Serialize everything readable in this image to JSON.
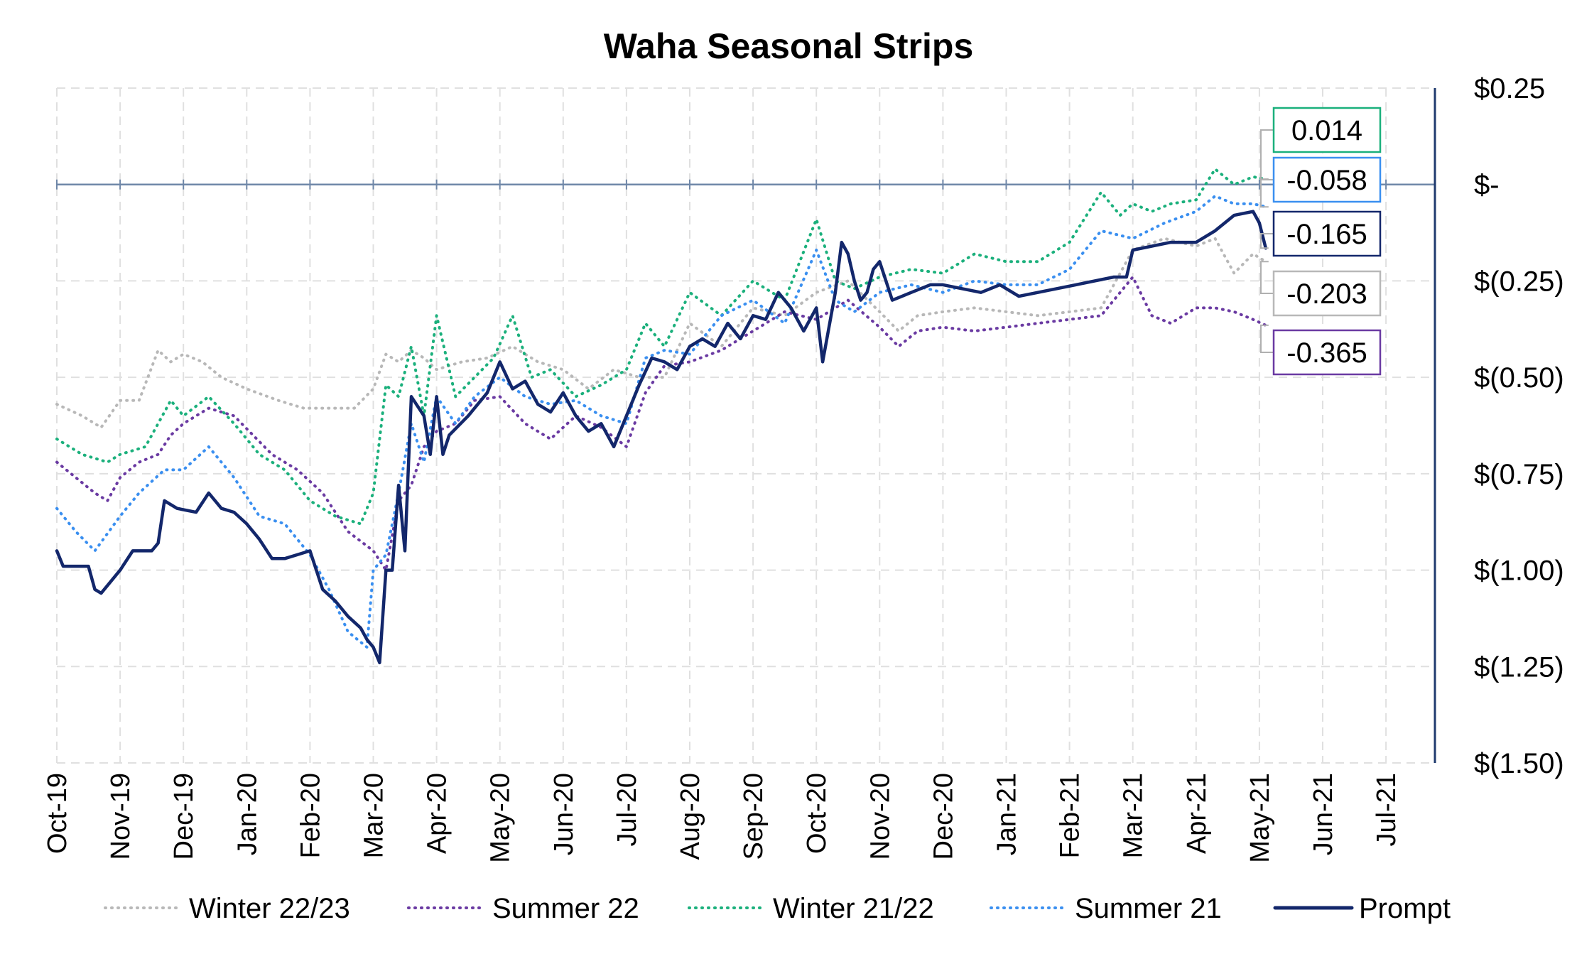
{
  "chart_data": {
    "type": "line",
    "title": "Waha Seasonal Strips",
    "xlabel": "",
    "ylabel": "",
    "ylim": [
      -1.5,
      0.25
    ],
    "y_ticks": [
      {
        "value": 0.25,
        "label": "$0.25"
      },
      {
        "value": 0.0,
        "label": "$-"
      },
      {
        "value": -0.25,
        "label": "$(0.25)"
      },
      {
        "value": -0.5,
        "label": "$(0.50)"
      },
      {
        "value": -0.75,
        "label": "$(0.75)"
      },
      {
        "value": -1.0,
        "label": "$(1.00)"
      },
      {
        "value": -1.25,
        "label": "$(1.25)"
      },
      {
        "value": -1.5,
        "label": "$(1.50)"
      }
    ],
    "x_ticks": [
      "Oct-19",
      "Nov-19",
      "Dec-19",
      "Jan-20",
      "Feb-20",
      "Mar-20",
      "Apr-20",
      "May-20",
      "Jun-20",
      "Jul-20",
      "Aug-20",
      "Sep-20",
      "Oct-20",
      "Nov-20",
      "Dec-20",
      "Jan-21",
      "Feb-21",
      "Mar-21",
      "Apr-21",
      "May-21",
      "Jun-21",
      "Jul-21"
    ],
    "grid": true,
    "legend_position": "bottom",
    "x_unit": "months since Oct-19",
    "series": [
      {
        "name": "Winter 22/23",
        "color": "#b8b8b8",
        "style": "dotted",
        "end_value": "-0.203",
        "x": [
          0,
          0.4,
          0.7,
          1.0,
          1.3,
          1.6,
          1.8,
          2.0,
          2.3,
          2.6,
          3.0,
          3.5,
          3.9,
          4.3,
          4.7,
          5.0,
          5.2,
          5.4,
          5.6,
          5.8,
          6.0,
          6.4,
          6.8,
          7.2,
          7.6,
          8.0,
          8.4,
          8.8,
          9.2,
          9.6,
          10.0,
          10.5,
          11.0,
          11.5,
          12.0,
          12.5,
          13.0,
          13.3,
          13.6,
          14.0,
          14.5,
          15.0,
          15.5,
          16.0,
          16.5,
          17.0,
          17.5,
          18.0,
          18.3,
          18.6,
          18.9,
          19.1
        ],
        "y": [
          -0.57,
          -0.6,
          -0.63,
          -0.56,
          -0.56,
          -0.43,
          -0.46,
          -0.44,
          -0.46,
          -0.5,
          -0.53,
          -0.56,
          -0.58,
          -0.58,
          -0.58,
          -0.53,
          -0.44,
          -0.46,
          -0.43,
          -0.45,
          -0.48,
          -0.46,
          -0.45,
          -0.42,
          -0.46,
          -0.48,
          -0.53,
          -0.48,
          -0.5,
          -0.5,
          -0.36,
          -0.42,
          -0.32,
          -0.34,
          -0.28,
          -0.25,
          -0.33,
          -0.38,
          -0.34,
          -0.33,
          -0.32,
          -0.33,
          -0.34,
          -0.33,
          -0.32,
          -0.17,
          -0.14,
          -0.16,
          -0.14,
          -0.23,
          -0.18,
          -0.2
        ]
      },
      {
        "name": "Summer 22",
        "color": "#6a3aa2",
        "style": "dotted",
        "end_value": "-0.365",
        "x": [
          0,
          0.3,
          0.6,
          0.8,
          1.0,
          1.3,
          1.6,
          1.8,
          2.0,
          2.4,
          2.8,
          3.1,
          3.4,
          3.8,
          4.2,
          4.6,
          5.0,
          5.2,
          5.4,
          5.6,
          5.8,
          6.0,
          6.3,
          6.6,
          7.0,
          7.4,
          7.8,
          8.2,
          8.6,
          9.0,
          9.3,
          9.6,
          10.0,
          10.5,
          11.0,
          11.5,
          12.0,
          12.5,
          13.0,
          13.3,
          13.6,
          14.0,
          14.5,
          15.0,
          15.5,
          16.0,
          16.5,
          17.0,
          17.3,
          17.6,
          18.0,
          18.3,
          18.6,
          18.9,
          19.1
        ],
        "y": [
          -0.72,
          -0.76,
          -0.8,
          -0.82,
          -0.76,
          -0.72,
          -0.7,
          -0.65,
          -0.62,
          -0.58,
          -0.6,
          -0.65,
          -0.7,
          -0.74,
          -0.8,
          -0.9,
          -0.95,
          -1.0,
          -0.82,
          -0.78,
          -0.68,
          -0.64,
          -0.62,
          -0.56,
          -0.55,
          -0.62,
          -0.66,
          -0.6,
          -0.63,
          -0.68,
          -0.54,
          -0.47,
          -0.46,
          -0.43,
          -0.38,
          -0.33,
          -0.35,
          -0.3,
          -0.37,
          -0.42,
          -0.38,
          -0.37,
          -0.38,
          -0.37,
          -0.36,
          -0.35,
          -0.34,
          -0.24,
          -0.34,
          -0.36,
          -0.32,
          -0.32,
          -0.33,
          -0.35,
          -0.365
        ]
      },
      {
        "name": "Winter 21/22",
        "color": "#1bb07c",
        "style": "dotted",
        "end_value": "0.014",
        "x": [
          0,
          0.4,
          0.8,
          1.0,
          1.4,
          1.8,
          2.0,
          2.4,
          2.8,
          3.2,
          3.6,
          4.0,
          4.4,
          4.8,
          5.0,
          5.2,
          5.4,
          5.6,
          5.8,
          6.0,
          6.3,
          6.6,
          6.9,
          7.2,
          7.5,
          7.8,
          8.2,
          8.6,
          9.0,
          9.3,
          9.6,
          10.0,
          10.5,
          11.0,
          11.5,
          12.0,
          12.3,
          12.6,
          13.0,
          13.5,
          14.0,
          14.5,
          15.0,
          15.5,
          16.0,
          16.5,
          16.8,
          17.0,
          17.3,
          17.6,
          18.0,
          18.3,
          18.6,
          18.9,
          19.1
        ],
        "y": [
          -0.66,
          -0.7,
          -0.72,
          -0.7,
          -0.68,
          -0.56,
          -0.6,
          -0.55,
          -0.62,
          -0.7,
          -0.74,
          -0.82,
          -0.86,
          -0.88,
          -0.8,
          -0.52,
          -0.55,
          -0.42,
          -0.6,
          -0.34,
          -0.55,
          -0.5,
          -0.45,
          -0.34,
          -0.5,
          -0.48,
          -0.55,
          -0.52,
          -0.48,
          -0.36,
          -0.42,
          -0.28,
          -0.34,
          -0.25,
          -0.3,
          -0.09,
          -0.25,
          -0.27,
          -0.24,
          -0.22,
          -0.23,
          -0.18,
          -0.2,
          -0.2,
          -0.15,
          -0.02,
          -0.08,
          -0.05,
          -0.07,
          -0.05,
          -0.04,
          0.04,
          0.0,
          0.02,
          0.014
        ]
      },
      {
        "name": "Summer 21",
        "color": "#3a8ff0",
        "style": "dotted",
        "end_value": "-0.058",
        "x": [
          0,
          0.3,
          0.6,
          1.0,
          1.3,
          1.7,
          2.0,
          2.4,
          2.8,
          3.2,
          3.6,
          4.0,
          4.3,
          4.6,
          4.9,
          5.0,
          5.2,
          5.4,
          5.6,
          5.8,
          6.0,
          6.3,
          6.6,
          7.0,
          7.4,
          7.8,
          8.2,
          8.6,
          9.0,
          9.3,
          9.6,
          10.0,
          10.5,
          11.0,
          11.5,
          12.0,
          12.3,
          12.6,
          13.0,
          13.5,
          14.0,
          14.5,
          15.0,
          15.5,
          16.0,
          16.5,
          17.0,
          17.5,
          18.0,
          18.3,
          18.6,
          18.9,
          19.1
        ],
        "y": [
          -0.84,
          -0.9,
          -0.95,
          -0.86,
          -0.8,
          -0.74,
          -0.74,
          -0.68,
          -0.76,
          -0.86,
          -0.88,
          -0.96,
          -1.05,
          -1.16,
          -1.2,
          -1.0,
          -0.96,
          -0.8,
          -0.62,
          -0.72,
          -0.55,
          -0.62,
          -0.55,
          -0.5,
          -0.55,
          -0.57,
          -0.56,
          -0.6,
          -0.62,
          -0.45,
          -0.43,
          -0.44,
          -0.34,
          -0.3,
          -0.36,
          -0.17,
          -0.3,
          -0.33,
          -0.28,
          -0.26,
          -0.28,
          -0.25,
          -0.26,
          -0.26,
          -0.22,
          -0.12,
          -0.14,
          -0.1,
          -0.07,
          -0.03,
          -0.05,
          -0.05,
          -0.058
        ]
      },
      {
        "name": "Prompt",
        "color": "#13276b",
        "style": "solid",
        "end_value": "-0.165",
        "x": [
          0,
          0.1,
          0.5,
          0.6,
          0.7,
          1.0,
          1.2,
          1.5,
          1.6,
          1.7,
          1.9,
          2.2,
          2.4,
          2.6,
          2.8,
          3.0,
          3.2,
          3.4,
          3.6,
          3.8,
          4.0,
          4.1,
          4.2,
          4.4,
          4.6,
          4.8,
          4.9,
          5.0,
          5.1,
          5.2,
          5.3,
          5.4,
          5.5,
          5.6,
          5.8,
          5.9,
          6.0,
          6.1,
          6.2,
          6.5,
          6.8,
          7.0,
          7.2,
          7.4,
          7.6,
          7.8,
          8.0,
          8.2,
          8.4,
          8.6,
          8.8,
          9.0,
          9.2,
          9.4,
          9.6,
          9.8,
          10.0,
          10.2,
          10.4,
          10.6,
          10.8,
          11.0,
          11.2,
          11.4,
          11.6,
          11.8,
          12.0,
          12.1,
          12.3,
          12.4,
          12.5,
          12.6,
          12.7,
          12.8,
          12.9,
          13.0,
          13.2,
          13.5,
          13.8,
          14.0,
          14.3,
          14.6,
          14.9,
          15.2,
          15.5,
          15.8,
          16.1,
          16.4,
          16.7,
          16.9,
          17.0,
          17.3,
          17.6,
          18.0,
          18.3,
          18.6,
          18.9,
          19.0,
          19.1
        ],
        "y": [
          -0.95,
          -0.99,
          -0.99,
          -1.05,
          -1.06,
          -1.0,
          -0.95,
          -0.95,
          -0.93,
          -0.82,
          -0.84,
          -0.85,
          -0.8,
          -0.84,
          -0.85,
          -0.88,
          -0.92,
          -0.97,
          -0.97,
          -0.96,
          -0.95,
          -1.0,
          -1.05,
          -1.08,
          -1.12,
          -1.15,
          -1.18,
          -1.2,
          -1.24,
          -1.0,
          -1.0,
          -0.78,
          -0.95,
          -0.55,
          -0.6,
          -0.7,
          -0.55,
          -0.7,
          -0.65,
          -0.6,
          -0.54,
          -0.46,
          -0.53,
          -0.51,
          -0.57,
          -0.59,
          -0.54,
          -0.6,
          -0.64,
          -0.62,
          -0.68,
          -0.6,
          -0.52,
          -0.45,
          -0.46,
          -0.48,
          -0.42,
          -0.4,
          -0.42,
          -0.36,
          -0.4,
          -0.34,
          -0.35,
          -0.28,
          -0.32,
          -0.38,
          -0.32,
          -0.46,
          -0.28,
          -0.15,
          -0.18,
          -0.25,
          -0.3,
          -0.28,
          -0.22,
          -0.2,
          -0.3,
          -0.28,
          -0.26,
          -0.26,
          -0.27,
          -0.28,
          -0.26,
          -0.29,
          -0.28,
          -0.27,
          -0.26,
          -0.25,
          -0.24,
          -0.24,
          -0.17,
          -0.16,
          -0.15,
          -0.15,
          -0.12,
          -0.08,
          -0.07,
          -0.1,
          -0.165
        ]
      }
    ]
  }
}
